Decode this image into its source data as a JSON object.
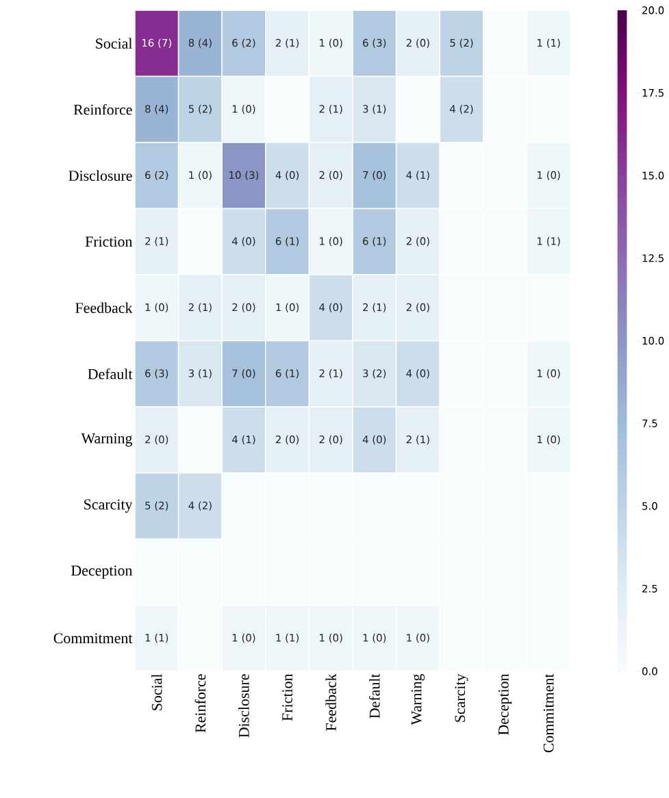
{
  "chart_data": {
    "type": "heatmap",
    "categories": [
      "Social",
      "Reinforce",
      "Disclosure",
      "Friction",
      "Feedback",
      "Default",
      "Warning",
      "Scarcity",
      "Deception",
      "Commitment"
    ],
    "y_categories": [
      "Social",
      "Reinforce",
      "Disclosure",
      "Friction",
      "Feedback",
      "Default",
      "Warning",
      "Scarcity",
      "Deception",
      "Commitment"
    ],
    "cells": [
      [
        16,
        8,
        6,
        2,
        1,
        6,
        2,
        5,
        0,
        1
      ],
      [
        8,
        5,
        1,
        0,
        2,
        3,
        0,
        4,
        0,
        0
      ],
      [
        6,
        1,
        10,
        4,
        2,
        7,
        4,
        0,
        0,
        1
      ],
      [
        2,
        0,
        4,
        6,
        1,
        6,
        2,
        0,
        0,
        1
      ],
      [
        1,
        2,
        2,
        1,
        4,
        2,
        2,
        0,
        0,
        0
      ],
      [
        6,
        3,
        7,
        6,
        2,
        3,
        4,
        0,
        0,
        1
      ],
      [
        2,
        0,
        4,
        2,
        2,
        4,
        2,
        0,
        0,
        1
      ],
      [
        5,
        4,
        0,
        0,
        0,
        0,
        0,
        0,
        0,
        0
      ],
      [
        0,
        0,
        0,
        0,
        0,
        0,
        0,
        0,
        0,
        0
      ],
      [
        1,
        0,
        1,
        1,
        1,
        1,
        1,
        0,
        0,
        0
      ]
    ],
    "cell_labels": [
      [
        "16 (7)",
        "8 (4)",
        "6 (2)",
        "2 (1)",
        "1 (0)",
        "6 (3)",
        "2 (0)",
        "5 (2)",
        null,
        "1 (1)"
      ],
      [
        "8 (4)",
        "5 (2)",
        "1 (0)",
        null,
        "2 (1)",
        "3 (1)",
        null,
        "4 (2)",
        null,
        null
      ],
      [
        "6 (2)",
        "1 (0)",
        "10 (3)",
        "4 (0)",
        "2 (0)",
        "7 (0)",
        "4 (1)",
        null,
        null,
        "1 (0)"
      ],
      [
        "2 (1)",
        null,
        "4 (0)",
        "6 (1)",
        "1 (0)",
        "6 (1)",
        "2 (0)",
        null,
        null,
        "1 (1)"
      ],
      [
        "1 (0)",
        "2 (1)",
        "2 (0)",
        "1 (0)",
        "4 (0)",
        "2 (1)",
        "2 (0)",
        null,
        null,
        null
      ],
      [
        "6 (3)",
        "3 (1)",
        "7 (0)",
        "6 (1)",
        "2 (1)",
        "3 (2)",
        "4 (0)",
        null,
        null,
        "1 (0)"
      ],
      [
        "2 (0)",
        null,
        "4 (1)",
        "2 (0)",
        "2 (0)",
        "4 (0)",
        "2 (1)",
        null,
        null,
        "1 (0)"
      ],
      [
        "5 (2)",
        "4 (2)",
        null,
        null,
        null,
        null,
        null,
        null,
        null,
        null
      ],
      [
        null,
        null,
        null,
        null,
        null,
        null,
        null,
        null,
        null,
        null
      ],
      [
        "1 (1)",
        null,
        "1 (0)",
        "1 (1)",
        "1 (0)",
        "1 (0)",
        "1 (0)",
        null,
        null,
        null
      ]
    ],
    "clim": [
      0,
      20
    ],
    "cticks": [
      {
        "value": 0,
        "label": "0.0"
      },
      {
        "value": 2.5,
        "label": "2.5"
      },
      {
        "value": 5,
        "label": "5.0"
      },
      {
        "value": 7.5,
        "label": "7.5"
      },
      {
        "value": 10,
        "label": "10.0"
      },
      {
        "value": 12.5,
        "label": "12.5"
      },
      {
        "value": 15,
        "label": "15.0"
      },
      {
        "value": 17.5,
        "label": "17.5"
      },
      {
        "value": 20,
        "label": "20.0"
      }
    ]
  }
}
